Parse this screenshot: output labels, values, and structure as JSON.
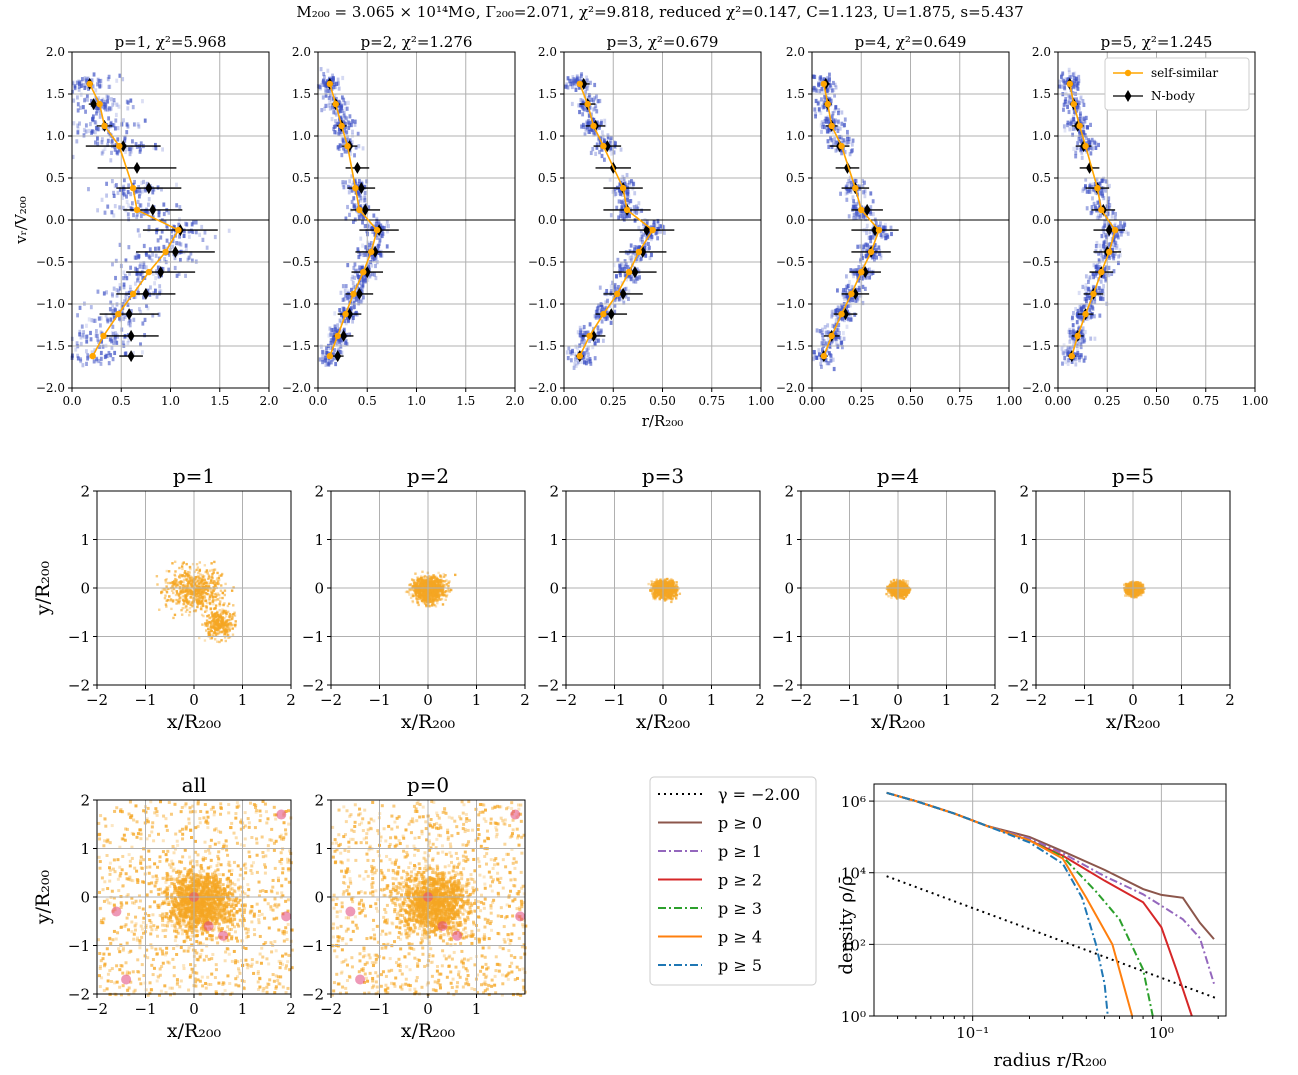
{
  "suptitle": "M₂₀₀ = 3.065 × 10¹⁴M⊙, Γ₂₀₀=2.071, χ²=9.818, reduced χ²=0.147, C=1.123, U=1.875, s=5.437",
  "colors": {
    "self_similar": "#ffa500",
    "nbody": "#000000",
    "hist2d": "#3b4fc4",
    "proj": "#f5a623",
    "grid": "#b0b0b0"
  },
  "chart_data": [
    {
      "type": "scatter",
      "title": "p=1, χ²=5.968",
      "xlabel": "",
      "ylabel": "vᵣ/V₂₀₀",
      "xlim": [
        0,
        2
      ],
      "ylim": [
        -2,
        2
      ],
      "xticks": [
        "0.0",
        "0.5",
        "1.0",
        "1.5",
        "2.0"
      ],
      "yticks": [
        "−2.0",
        "−1.5",
        "−1.0",
        "−0.5",
        "0.0",
        "0.5",
        "1.0",
        "1.5",
        "2.0"
      ],
      "legend": false,
      "series": [
        {
          "name": "self-similar",
          "x": [
            0.18,
            0.28,
            0.33,
            0.48,
            0.62,
            0.66,
            1.08,
            0.95,
            0.78,
            0.62,
            0.47,
            0.32,
            0.21
          ],
          "y": [
            1.62,
            1.38,
            1.12,
            0.88,
            0.38,
            0.12,
            -0.12,
            -0.38,
            -0.62,
            -0.88,
            -1.12,
            -1.38,
            -1.62
          ]
        },
        {
          "name": "N-body",
          "x": [
            0.18,
            0.22,
            0.33,
            0.52,
            0.66,
            0.78,
            0.82,
            1.1,
            1.05,
            0.9,
            0.75,
            0.58,
            0.6,
            0.6
          ],
          "y": [
            1.62,
            1.38,
            1.12,
            0.88,
            0.62,
            0.38,
            0.12,
            -0.12,
            -0.38,
            -0.62,
            -0.88,
            -1.12,
            -1.38,
            -1.62
          ],
          "xerr": [
            0.03,
            0.05,
            0.08,
            0.38,
            0.4,
            0.33,
            0.3,
            0.38,
            0.4,
            0.35,
            0.3,
            0.3,
            0.28,
            0.12
          ]
        }
      ]
    },
    {
      "type": "scatter",
      "title": "p=2, χ²=1.276",
      "xlabel": "",
      "ylabel": "",
      "xlim": [
        0,
        2
      ],
      "ylim": [
        -2,
        2
      ],
      "xticks": [
        "0.0",
        "0.5",
        "1.0",
        "1.5",
        "2.0"
      ],
      "yticks": [
        "−2.0",
        "−1.5",
        "−1.0",
        "−0.5",
        "0.0",
        "0.5",
        "1.0",
        "1.5",
        "2.0"
      ],
      "legend": false,
      "series": [
        {
          "name": "self-similar",
          "x": [
            0.12,
            0.18,
            0.24,
            0.3,
            0.38,
            0.42,
            0.6,
            0.54,
            0.46,
            0.36,
            0.28,
            0.2,
            0.12
          ],
          "y": [
            1.62,
            1.38,
            1.12,
            0.88,
            0.38,
            0.12,
            -0.12,
            -0.38,
            -0.62,
            -0.88,
            -1.12,
            -1.38,
            -1.62
          ]
        },
        {
          "name": "N-body",
          "x": [
            0.12,
            0.18,
            0.24,
            0.32,
            0.4,
            0.44,
            0.48,
            0.62,
            0.58,
            0.5,
            0.42,
            0.32,
            0.26,
            0.2
          ],
          "y": [
            1.62,
            1.38,
            1.12,
            0.88,
            0.62,
            0.38,
            0.12,
            -0.12,
            -0.38,
            -0.62,
            -0.88,
            -1.12,
            -1.38,
            -1.62
          ],
          "xerr": [
            0.02,
            0.04,
            0.05,
            0.08,
            0.12,
            0.14,
            0.15,
            0.2,
            0.2,
            0.16,
            0.14,
            0.12,
            0.1,
            0.06
          ]
        }
      ]
    },
    {
      "type": "scatter",
      "title": "p=3, χ²=0.679",
      "xlabel": "r/R₂₀₀",
      "ylabel": "",
      "xlim": [
        0,
        1
      ],
      "ylim": [
        -2,
        2
      ],
      "xticks": [
        "0.00",
        "0.25",
        "0.50",
        "0.75",
        "1.00"
      ],
      "yticks": [
        "−2.0",
        "−1.5",
        "−1.0",
        "−0.5",
        "0.0",
        "0.5",
        "1.0",
        "1.5",
        "2.0"
      ],
      "legend": false,
      "series": [
        {
          "name": "self-similar",
          "x": [
            0.08,
            0.12,
            0.15,
            0.2,
            0.3,
            0.32,
            0.45,
            0.38,
            0.33,
            0.27,
            0.2,
            0.13,
            0.08
          ],
          "y": [
            1.62,
            1.38,
            1.12,
            0.88,
            0.38,
            0.12,
            -0.12,
            -0.38,
            -0.62,
            -0.88,
            -1.12,
            -1.38,
            -1.62
          ]
        },
        {
          "name": "N-body",
          "x": [
            0.1,
            0.12,
            0.16,
            0.22,
            0.25,
            0.3,
            0.32,
            0.42,
            0.4,
            0.36,
            0.3,
            0.24,
            0.15,
            0.08
          ],
          "y": [
            1.62,
            1.38,
            1.12,
            0.88,
            0.62,
            0.38,
            0.12,
            -0.12,
            -0.38,
            -0.62,
            -0.88,
            -1.12,
            -1.38,
            -1.62
          ],
          "xerr": [
            0.03,
            0.04,
            0.05,
            0.07,
            0.09,
            0.1,
            0.12,
            0.14,
            0.12,
            0.11,
            0.1,
            0.08,
            0.06,
            0.02
          ]
        }
      ]
    },
    {
      "type": "scatter",
      "title": "p=4, χ²=0.649",
      "xlabel": "",
      "ylabel": "",
      "xlim": [
        0,
        1
      ],
      "ylim": [
        -2,
        2
      ],
      "xticks": [
        "0.00",
        "0.25",
        "0.50",
        "0.75",
        "1.00"
      ],
      "yticks": [
        "−2.0",
        "−1.5",
        "−1.0",
        "−0.5",
        "0.0",
        "0.5",
        "1.0",
        "1.5",
        "2.0"
      ],
      "legend": false,
      "series": [
        {
          "name": "self-similar",
          "x": [
            0.06,
            0.08,
            0.1,
            0.15,
            0.22,
            0.25,
            0.34,
            0.3,
            0.25,
            0.2,
            0.15,
            0.1,
            0.06
          ],
          "y": [
            1.62,
            1.38,
            1.12,
            0.88,
            0.38,
            0.12,
            -0.12,
            -0.38,
            -0.62,
            -0.88,
            -1.12,
            -1.38,
            -1.62
          ]
        },
        {
          "name": "N-body",
          "x": [
            0.07,
            0.08,
            0.1,
            0.14,
            0.18,
            0.22,
            0.28,
            0.32,
            0.3,
            0.27,
            0.22,
            0.17,
            0.1,
            0.06
          ],
          "y": [
            1.62,
            1.38,
            1.12,
            0.88,
            0.62,
            0.38,
            0.12,
            -0.12,
            -0.38,
            -0.62,
            -0.88,
            -1.12,
            -1.38,
            -1.62
          ],
          "xerr": [
            0.02,
            0.02,
            0.03,
            0.05,
            0.06,
            0.07,
            0.08,
            0.12,
            0.1,
            0.08,
            0.07,
            0.06,
            0.04,
            0.02
          ]
        }
      ]
    },
    {
      "type": "scatter",
      "title": "p=5, χ²=1.245",
      "xlabel": "",
      "ylabel": "",
      "xlim": [
        0,
        1
      ],
      "ylim": [
        -2,
        2
      ],
      "xticks": [
        "0.00",
        "0.25",
        "0.50",
        "0.75",
        "1.00"
      ],
      "yticks": [
        "−2.0",
        "−1.5",
        "−1.0",
        "−0.5",
        "0.0",
        "0.5",
        "1.0",
        "1.5",
        "2.0"
      ],
      "legend": true,
      "legend_loc": "upper right",
      "series": [
        {
          "name": "self-similar",
          "x": [
            0.06,
            0.08,
            0.11,
            0.14,
            0.2,
            0.22,
            0.29,
            0.26,
            0.22,
            0.18,
            0.14,
            0.1,
            0.07
          ],
          "y": [
            1.62,
            1.38,
            1.12,
            0.88,
            0.38,
            0.12,
            -0.12,
            -0.38,
            -0.62,
            -0.88,
            -1.12,
            -1.38,
            -1.62
          ]
        },
        {
          "name": "N-body",
          "x": [
            0.06,
            0.08,
            0.1,
            0.13,
            0.16,
            0.2,
            0.23,
            0.26,
            0.25,
            0.22,
            0.18,
            0.14,
            0.1,
            0.07
          ],
          "y": [
            1.62,
            1.38,
            1.12,
            0.88,
            0.62,
            0.38,
            0.12,
            -0.12,
            -0.38,
            -0.62,
            -0.88,
            -1.12,
            -1.38,
            -1.62
          ],
          "xerr": [
            0.01,
            0.02,
            0.03,
            0.04,
            0.05,
            0.06,
            0.06,
            0.08,
            0.07,
            0.06,
            0.05,
            0.04,
            0.03,
            0.02
          ]
        }
      ]
    },
    {
      "type": "heatmap",
      "title": "p=1",
      "xlabel": "x/R₂₀₀",
      "ylabel": "y/R₂₀₀",
      "xlim": [
        -2,
        2
      ],
      "ylim": [
        -2,
        2
      ],
      "xticks": [
        "−2",
        "−1",
        "0",
        "1",
        "2"
      ],
      "yticks": [
        "−2",
        "−1",
        "0",
        "1",
        "2"
      ]
    },
    {
      "type": "heatmap",
      "title": "p=2",
      "xlabel": "x/R₂₀₀",
      "ylabel": "",
      "xlim": [
        -2,
        2
      ],
      "ylim": [
        -2,
        2
      ],
      "xticks": [
        "−2",
        "−1",
        "0",
        "1",
        "2"
      ],
      "yticks": [
        "−2",
        "−1",
        "0",
        "1",
        "2"
      ]
    },
    {
      "type": "heatmap",
      "title": "p=3",
      "xlabel": "x/R₂₀₀",
      "ylabel": "",
      "xlim": [
        -2,
        2
      ],
      "ylim": [
        -2,
        2
      ],
      "xticks": [
        "−2",
        "−1",
        "0",
        "1",
        "2"
      ],
      "yticks": [
        "−2",
        "−1",
        "0",
        "1",
        "2"
      ]
    },
    {
      "type": "heatmap",
      "title": "p=4",
      "xlabel": "x/R₂₀₀",
      "ylabel": "",
      "xlim": [
        -2,
        2
      ],
      "ylim": [
        -2,
        2
      ],
      "xticks": [
        "−2",
        "−1",
        "0",
        "1",
        "2"
      ],
      "yticks": [
        "−2",
        "−1",
        "0",
        "1",
        "2"
      ]
    },
    {
      "type": "heatmap",
      "title": "p=5",
      "xlabel": "x/R₂₀₀",
      "ylabel": "",
      "xlim": [
        -2,
        2
      ],
      "ylim": [
        -2,
        2
      ],
      "xticks": [
        "−2",
        "−1",
        "0",
        "1",
        "2"
      ],
      "yticks": [
        "−2",
        "−1",
        "0",
        "1",
        "2"
      ]
    },
    {
      "type": "heatmap",
      "title": "all",
      "xlabel": "x/R₂₀₀",
      "ylabel": "y/R₂₀₀",
      "xlim": [
        -2,
        2
      ],
      "ylim": [
        -2,
        2
      ],
      "xticks": [
        "−2",
        "−1",
        "0",
        "1",
        "2"
      ],
      "yticks": [
        "−2",
        "−1",
        "0",
        "1",
        "2"
      ]
    },
    {
      "type": "heatmap",
      "title": "p=0",
      "xlabel": "x/R₂₀₀",
      "ylabel": "",
      "xlim": [
        -2,
        2
      ],
      "ylim": [
        -2,
        2
      ],
      "xticks": [
        "−2",
        "−1",
        "0",
        "1"
      ],
      "yticks": [
        "−2",
        "−1",
        "0",
        "1",
        "2"
      ]
    },
    {
      "type": "line",
      "title": "",
      "xlabel": "radius r/R₂₀₀",
      "ylabel": "density ρ/ρ̄",
      "xscale": "log",
      "yscale": "log",
      "xlim": [
        0.03,
        2.2
      ],
      "ylim": [
        1,
        3000000
      ],
      "xticks": [
        "10⁻¹",
        "10⁰"
      ],
      "yticks": [
        "10⁰",
        "10²",
        "10⁴",
        "10⁶"
      ],
      "legend": true,
      "legend_loc": "outside left",
      "series": [
        {
          "name": "γ = −2.00",
          "color": "#000000",
          "dash": "dotted",
          "x": [
            0.035,
            2.0
          ],
          "y": [
            8000,
            3
          ]
        },
        {
          "name": "p ≥ 0",
          "color": "#8c564b",
          "dash": "solid",
          "x": [
            0.035,
            0.05,
            0.08,
            0.12,
            0.2,
            0.3,
            0.5,
            0.8,
            1.0,
            1.3,
            1.6,
            1.9
          ],
          "y": [
            1700000,
            1000000,
            450000,
            200000,
            100000,
            40000,
            12000,
            3500,
            2400,
            2000,
            400,
            140
          ]
        },
        {
          "name": "p ≥ 1",
          "color": "#9467bd",
          "dash": "dashdot",
          "x": [
            0.035,
            0.05,
            0.08,
            0.12,
            0.2,
            0.3,
            0.5,
            0.8,
            1.0,
            1.3,
            1.6,
            1.9
          ],
          "y": [
            1700000,
            1000000,
            450000,
            200000,
            90000,
            35000,
            8000,
            2500,
            1200,
            500,
            150,
            8
          ]
        },
        {
          "name": "p ≥ 2",
          "color": "#d62728",
          "dash": "solid",
          "x": [
            0.035,
            0.05,
            0.08,
            0.12,
            0.2,
            0.3,
            0.5,
            0.8,
            1.0,
            1.2,
            1.45
          ],
          "y": [
            1700000,
            1000000,
            450000,
            200000,
            80000,
            30000,
            6000,
            1500,
            300,
            20,
            1
          ]
        },
        {
          "name": "p ≥ 3",
          "color": "#2ca02c",
          "dash": "dashdot",
          "x": [
            0.035,
            0.05,
            0.08,
            0.12,
            0.2,
            0.3,
            0.45,
            0.6,
            0.8,
            0.9
          ],
          "y": [
            1700000,
            1000000,
            450000,
            200000,
            80000,
            28000,
            3000,
            500,
            20,
            1
          ]
        },
        {
          "name": "p ≥ 4",
          "color": "#ff7f0e",
          "dash": "solid",
          "x": [
            0.035,
            0.05,
            0.08,
            0.12,
            0.2,
            0.3,
            0.4,
            0.55,
            0.7
          ],
          "y": [
            1700000,
            1000000,
            450000,
            200000,
            80000,
            25000,
            2000,
            100,
            1
          ]
        },
        {
          "name": "p ≥ 5",
          "color": "#1f77b4",
          "dash": "dashdot",
          "x": [
            0.035,
            0.05,
            0.08,
            0.12,
            0.2,
            0.3,
            0.38,
            0.45,
            0.5,
            0.52
          ],
          "y": [
            1700000,
            1000000,
            450000,
            200000,
            70000,
            18000,
            2000,
            100,
            8,
            1
          ]
        }
      ]
    }
  ]
}
